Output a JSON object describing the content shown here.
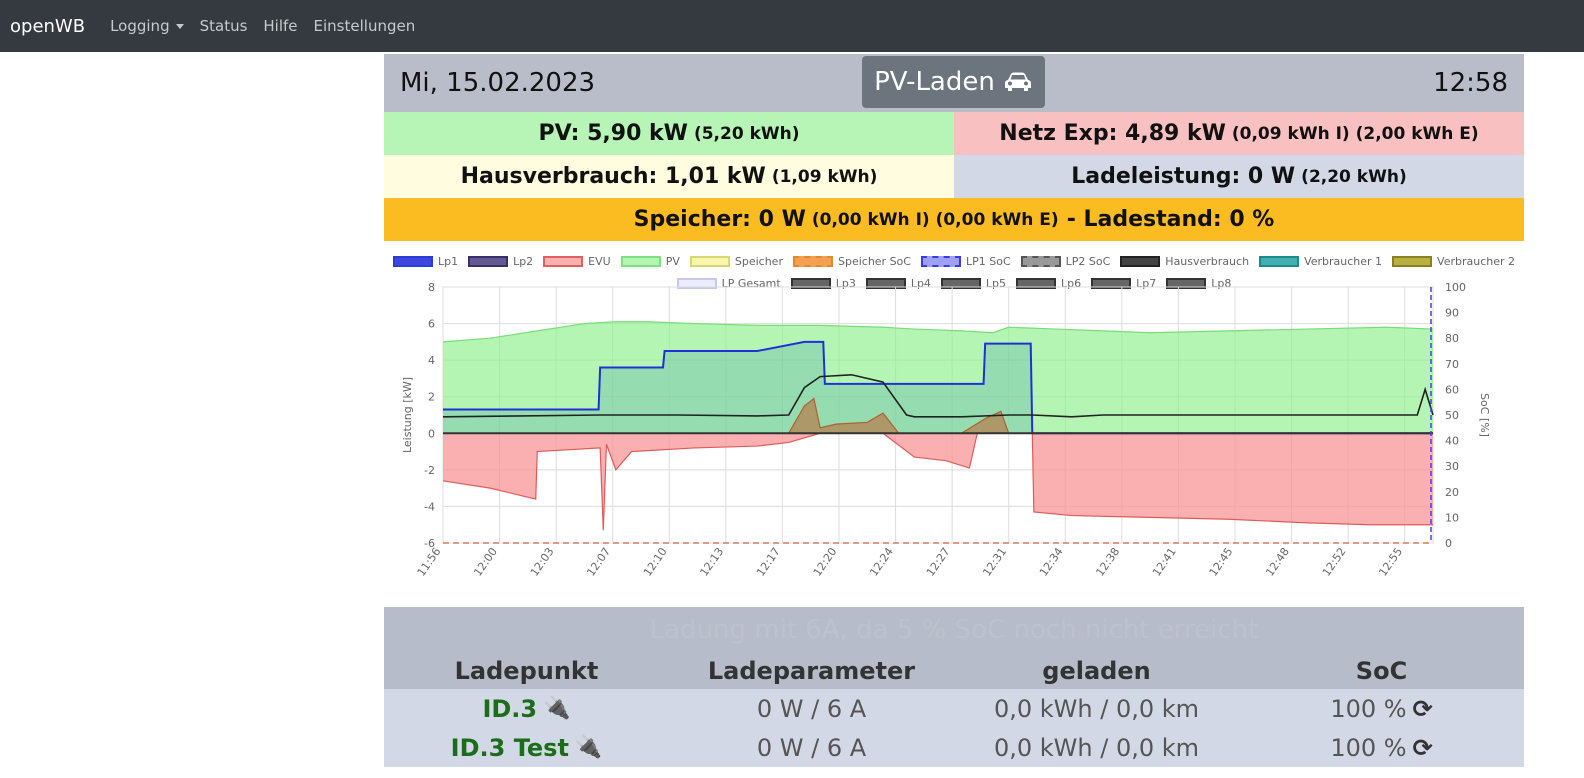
{
  "nav": {
    "brand": "openWB",
    "items": [
      {
        "label": "Logging",
        "dropdown": true
      },
      {
        "label": "Status"
      },
      {
        "label": "Hilfe"
      },
      {
        "label": "Einstellungen"
      }
    ]
  },
  "header": {
    "date": "Mi, 15.02.2023",
    "mode": "PV-Laden",
    "mode_icon": "car-icon",
    "time": "12:58"
  },
  "summary": {
    "pv": {
      "label": "PV: 5,90 kW",
      "extra": "(5,20 kWh)"
    },
    "netz": {
      "label": "Netz Exp: 4,89 kW",
      "extra": "(0,09 kWh I) (2,00 kWh E)"
    },
    "haus": {
      "label": "Hausverbrauch: 1,01 kW",
      "extra": "(1,09 kWh)"
    },
    "lade": {
      "label": "Ladeleistung: 0 W",
      "extra": "(2,20 kWh)"
    },
    "speicher": {
      "label": "Speicher: 0 W",
      "extra": "(0,00 kWh I) (0,00 kWh E)",
      "soc": "- Ladestand: 0 %"
    }
  },
  "colors": {
    "pv_bg": "#b6f5b6",
    "netz_bg": "#f8c0c0",
    "haus_bg": "#fffce0",
    "lade_bg": "#d3d8e6",
    "speicher_bg": "#fbbc21"
  },
  "chart_data": {
    "type": "line",
    "ylabel": "Leistung [kW]",
    "y2label": "SoC [%]",
    "ylim": [
      -6,
      8
    ],
    "y2lim": [
      0,
      100
    ],
    "yticks": [
      "8",
      "6",
      "4",
      "2",
      "0",
      "-2",
      "-4",
      "-6"
    ],
    "y2ticks": [
      "100",
      "90",
      "80",
      "70",
      "60",
      "50",
      "40",
      "30",
      "20",
      "10",
      "0"
    ],
    "xticks": [
      "11:56",
      "12:00",
      "12:03",
      "12:07",
      "12:10",
      "12:13",
      "12:17",
      "12:20",
      "12:24",
      "12:27",
      "12:31",
      "12:34",
      "12:38",
      "12:41",
      "12:45",
      "12:48",
      "12:52",
      "12:55"
    ],
    "xrange_minutes": [
      0,
      63
    ],
    "grid": true,
    "legend": [
      {
        "name": "Lp1",
        "color": "#2b3bd6",
        "fill": "#3d47e0"
      },
      {
        "name": "Lp2",
        "color": "#3a2f6b",
        "fill": "#625a90"
      },
      {
        "name": "EVU",
        "color": "#e06060",
        "fill": "#f8b0b0"
      },
      {
        "name": "PV",
        "color": "#7fe07f",
        "fill": "#b3f5b3"
      },
      {
        "name": "Speicher",
        "color": "#d8d870",
        "fill": "#f8f5b0"
      },
      {
        "name": "Speicher SoC",
        "color": "#e08a30",
        "fill": "#f5a050",
        "dashed": true
      },
      {
        "name": "LP1 SoC",
        "color": "#3a3ae8",
        "fill": "#a0a0f5",
        "dashed": true
      },
      {
        "name": "LP2 SoC",
        "color": "#555",
        "fill": "#999",
        "dashed": true
      },
      {
        "name": "Hausverbrauch",
        "color": "#222",
        "fill": "#444"
      },
      {
        "name": "Verbraucher 1",
        "color": "#1d8a8a",
        "fill": "#40b0b0"
      },
      {
        "name": "Verbraucher 2",
        "color": "#8a8020",
        "fill": "#b8b040"
      },
      {
        "name": "LP Gesamt",
        "color": "#c8c8ee",
        "fill": "#ececff"
      },
      {
        "name": "Lp3",
        "color": "#333",
        "fill": "#666"
      },
      {
        "name": "Lp4",
        "color": "#333",
        "fill": "#666"
      },
      {
        "name": "Lp5",
        "color": "#333",
        "fill": "#666"
      },
      {
        "name": "Lp6",
        "color": "#333",
        "fill": "#666"
      },
      {
        "name": "Lp7",
        "color": "#333",
        "fill": "#666"
      },
      {
        "name": "Lp8",
        "color": "#333",
        "fill": "#666"
      }
    ],
    "series": [
      {
        "name": "PV",
        "t": [
          0,
          3,
          6,
          9,
          11,
          13,
          16,
          20,
          24,
          28,
          30,
          33,
          35,
          36,
          39,
          42,
          45,
          50,
          55,
          60,
          63
        ],
        "values": [
          5.0,
          5.2,
          5.6,
          6.0,
          6.1,
          6.1,
          6.0,
          5.9,
          5.9,
          5.8,
          5.7,
          5.6,
          5.5,
          5.8,
          5.7,
          5.6,
          5.5,
          5.6,
          5.7,
          5.8,
          5.7
        ]
      },
      {
        "name": "EVU",
        "t": [
          0,
          3,
          5.9,
          6,
          10,
          10.2,
          10.4,
          11,
          12,
          16,
          20,
          22,
          24,
          28,
          30,
          32,
          33.5,
          34,
          36,
          37.5,
          37.6,
          40,
          45,
          50,
          55,
          59,
          62.5,
          63
        ],
        "values": [
          -2.6,
          -3.0,
          -3.6,
          -1.0,
          -0.8,
          -5.3,
          -0.6,
          -2.0,
          -1.0,
          -0.8,
          -0.7,
          -0.5,
          0.0,
          0.0,
          -1.3,
          -1.5,
          -1.9,
          0.0,
          0.0,
          0.0,
          -4.3,
          -4.5,
          -4.6,
          -4.7,
          -4.9,
          -5.0,
          -5.0,
          -5.0
        ]
      },
      {
        "name": "Lp1",
        "t": [
          0,
          9.9,
          10,
          14,
          14.1,
          20,
          23,
          24.2,
          24.3,
          29,
          29.1,
          34.4,
          34.5,
          37.4,
          37.5,
          63
        ],
        "values": [
          1.3,
          1.3,
          3.6,
          3.6,
          4.5,
          4.5,
          5.0,
          5.0,
          2.7,
          2.7,
          2.7,
          2.7,
          4.9,
          4.9,
          0.0,
          0.0
        ]
      },
      {
        "name": "Hausverbrauch",
        "t": [
          0,
          5,
          10,
          15,
          20,
          22,
          23,
          24,
          26,
          28,
          29.5,
          30,
          33,
          36,
          37.5,
          40,
          42,
          45,
          50,
          55,
          60,
          62,
          62.5,
          63
        ],
        "values": [
          0.9,
          0.95,
          1.0,
          1.0,
          0.95,
          1.0,
          2.5,
          3.1,
          3.2,
          2.8,
          1.0,
          0.9,
          0.9,
          1.0,
          1.0,
          0.9,
          1.0,
          1.0,
          1.0,
          1.0,
          1.0,
          1.0,
          2.4,
          1.0
        ]
      },
      {
        "name": "Speicher",
        "t": [
          0,
          22,
          23,
          23.6,
          24,
          25,
          27,
          28,
          29,
          33,
          34.5,
          35.5,
          36,
          63
        ],
        "values": [
          0,
          0,
          1.5,
          1.9,
          0.3,
          0.5,
          0.6,
          1.1,
          0,
          0,
          0.8,
          1.2,
          0,
          0
        ]
      },
      {
        "name": "Speicher SoC",
        "t": [
          0,
          63
        ],
        "values": [
          0,
          0
        ]
      },
      {
        "name": "LP1 SoC",
        "t": [
          62.5,
          63
        ],
        "values": [
          100,
          100
        ]
      }
    ]
  },
  "status": {
    "hint": "Ladung mit 6A, da 5 % SoC noch nicht erreicht",
    "columns": [
      "Ladepunkt",
      "Ladeparameter",
      "geladen",
      "SoC"
    ],
    "rows": [
      {
        "name": "ID.3",
        "plug_icon": "plug-icon",
        "param": "0 W / 6 A",
        "charged": "0,0 kWh / 0,0 km",
        "soc": "100 %"
      },
      {
        "name": "ID.3 Test",
        "plug_icon": "plug-icon",
        "param": "0 W / 6 A",
        "charged": "0,0 kWh / 0,0 km",
        "soc": "100 %"
      }
    ]
  }
}
